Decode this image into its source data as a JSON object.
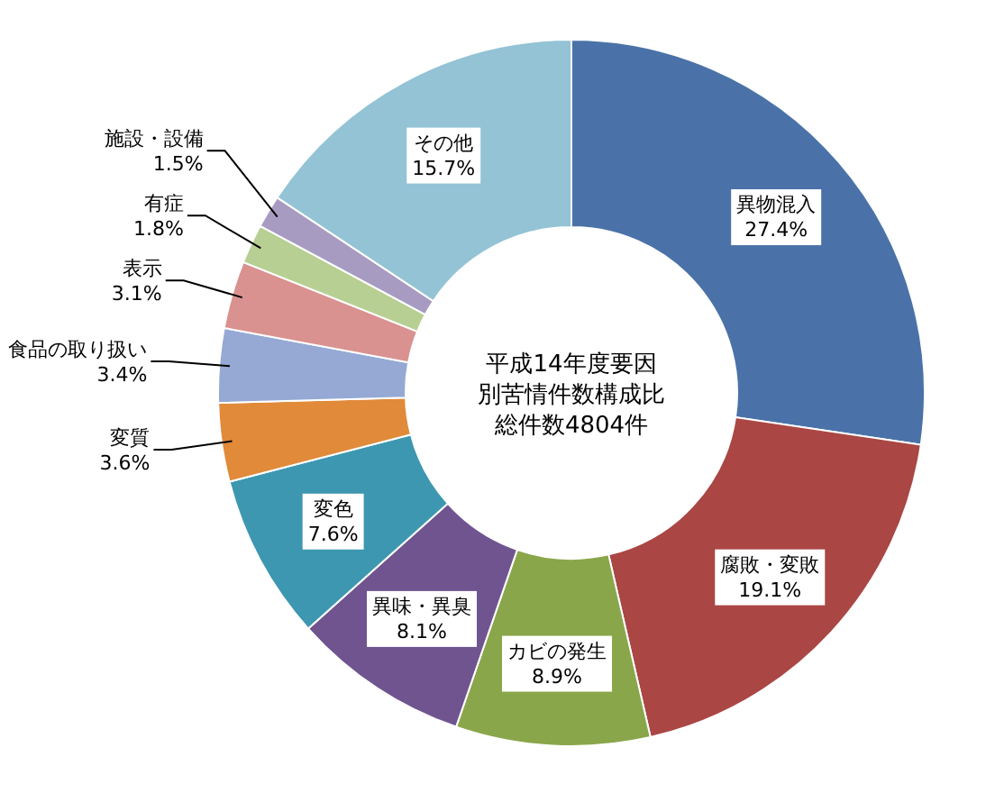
{
  "chart_data": {
    "type": "donut",
    "title": "平成14年度要因別苦情件数構成比",
    "subtitle": "総件数4804件",
    "categories": [
      "異物混入",
      "腐敗・変敗",
      "カビの発生",
      "異味・異臭",
      "変色",
      "変質",
      "食品の取り扱い",
      "表示",
      "有症",
      "施設・設備",
      "その他"
    ],
    "values": [
      27.4,
      19.1,
      8.9,
      8.1,
      7.6,
      3.6,
      3.4,
      3.1,
      1.8,
      1.5,
      15.7
    ],
    "value_labels": [
      "27.4%",
      "19.1%",
      "8.9%",
      "8.1%",
      "7.6%",
      "3.6%",
      "3.4%",
      "3.1%",
      "1.8%",
      "1.5%",
      "15.7%"
    ],
    "colors": [
      "#4a72a8",
      "#aa4644",
      "#8aa64a",
      "#6f5490",
      "#3d97b0",
      "#e08a3a",
      "#95a9d4",
      "#d99290",
      "#b7cf92",
      "#a89bc1",
      "#93c3d5"
    ]
  }
}
